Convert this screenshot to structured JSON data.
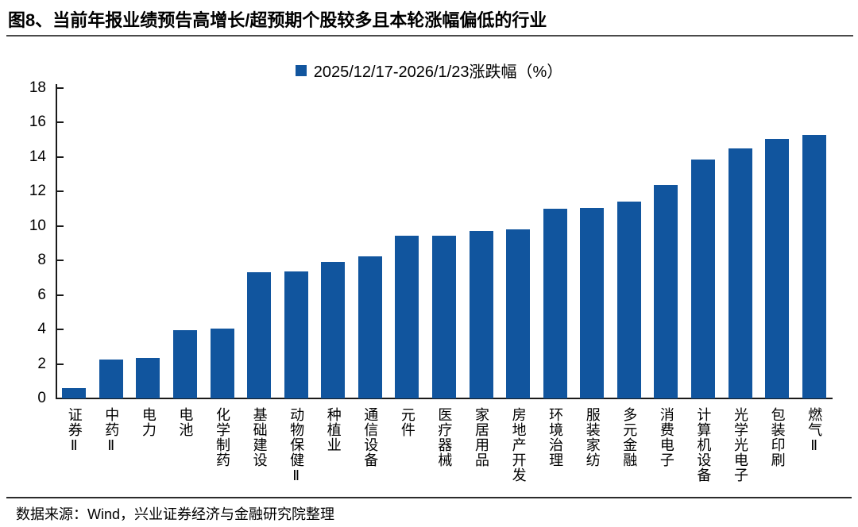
{
  "title": "图8、当前年报业绩预告高增长/超预期个股较多且本轮涨幅偏低的行业",
  "source_note": "数据来源：Wind，兴业证券经济与金融研究院整理",
  "colors": {
    "bar": "#11559e",
    "axis": "#1a1a1a"
  },
  "chart_data": {
    "type": "bar",
    "title": "",
    "xlabel": "",
    "ylabel": "",
    "ylim": [
      0,
      18
    ],
    "yticks": [
      0,
      2,
      4,
      6,
      8,
      10,
      12,
      14,
      16,
      18
    ],
    "grid": false,
    "legend_position": "top-center",
    "bar_color": "#11559e",
    "categories": [
      "证券Ⅱ",
      "中药Ⅱ",
      "电力",
      "电池",
      "化学制药",
      "基础建设",
      "动物保健Ⅱ",
      "种植业",
      "通信设备",
      "元件",
      "医疗器械",
      "家居用品",
      "房地产开发",
      "环境治理",
      "服装家纺",
      "多元金融",
      "消费电子",
      "计算机设备",
      "光学光电子",
      "包装印刷",
      "燃气Ⅱ"
    ],
    "series": [
      {
        "name": "2025/12/17-2026/1/23涨跌幅（%）",
        "values": [
          0.6,
          2.25,
          2.35,
          3.95,
          4.05,
          7.3,
          7.35,
          7.9,
          8.25,
          9.45,
          9.45,
          9.7,
          9.8,
          11.0,
          11.05,
          11.4,
          12.4,
          13.85,
          14.5,
          15.05,
          15.3
        ]
      }
    ]
  }
}
